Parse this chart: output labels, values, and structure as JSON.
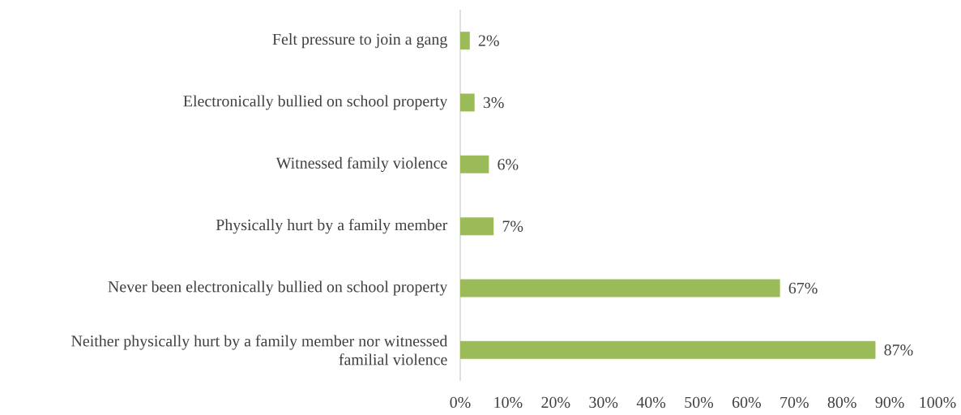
{
  "chart_data": {
    "type": "bar",
    "orientation": "horizontal",
    "categories": [
      "Felt pressure to join a gang",
      "Electronically bullied on school property",
      "Witnessed family violence",
      "Physically hurt by a family member",
      "Never been electronically bullied on school property",
      "Neither physically hurt by a family member nor witnessed familial violence"
    ],
    "values": [
      2,
      3,
      6,
      7,
      67,
      87
    ],
    "value_labels": [
      "2%",
      "3%",
      "6%",
      "7%",
      "67%",
      "87%"
    ],
    "color": "#9bbb59",
    "xlim": [
      0,
      100
    ],
    "xticks": [
      {
        "value": 0,
        "label": "0%"
      },
      {
        "value": 10,
        "label": "10%"
      },
      {
        "value": 20,
        "label": "20%"
      },
      {
        "value": 30,
        "label": "30%"
      },
      {
        "value": 40,
        "label": "40%"
      },
      {
        "value": 50,
        "label": "50%"
      },
      {
        "value": 60,
        "label": "60%"
      },
      {
        "value": 70,
        "label": "70%"
      },
      {
        "value": 80,
        "label": "80%"
      },
      {
        "value": 90,
        "label": "90%"
      },
      {
        "value": 100,
        "label": "100%"
      }
    ],
    "grid": false
  }
}
